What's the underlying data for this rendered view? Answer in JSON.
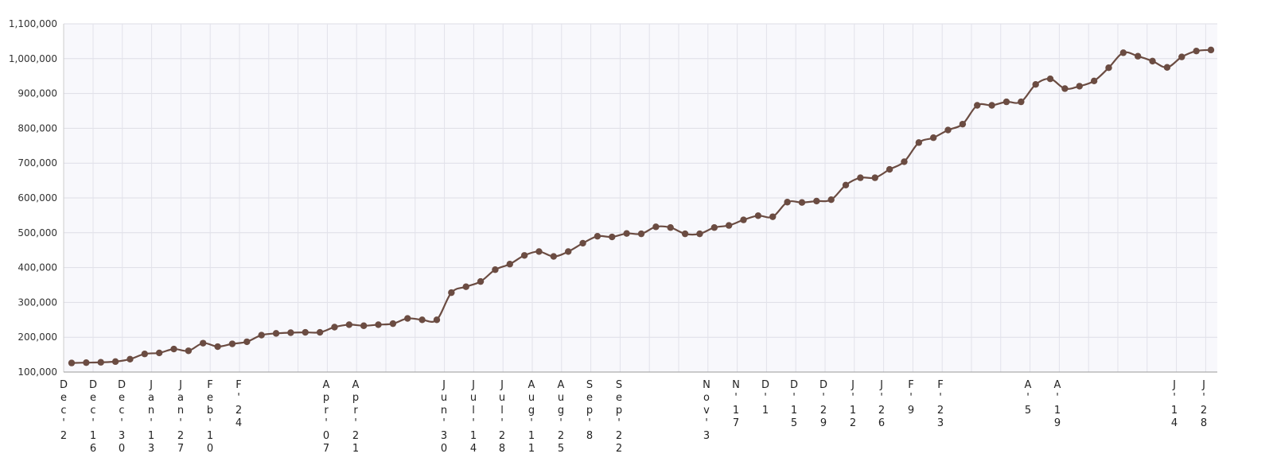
{
  "chart_data": {
    "type": "line",
    "ylim": [
      100000,
      1100000
    ],
    "y_ticks": [
      "100,000",
      "200,000",
      "300,000",
      "400,000",
      "500,000",
      "600,000",
      "700,000",
      "800,000",
      "900,000",
      "1,000,000",
      "1,100,000"
    ],
    "x_tick_labels": [
      "Dec'2",
      "Dec'16",
      "Dec'30",
      "Jan'13",
      "Jan'27",
      "Feb'10",
      "F'24",
      "Apr'07",
      "Apr'21",
      "Jun'30",
      "Jul'14",
      "Jul'28",
      "Aug'11",
      "Aug'25",
      "Sep'8",
      "Sep'22",
      "Nov'3",
      "N'17",
      "D'1",
      "D'15",
      "D'29",
      "J'12",
      "J'26",
      "F'9",
      "F'23",
      "A'5",
      "A'19",
      "J'14",
      "J'28"
    ],
    "grid": true,
    "legend": "none",
    "series": [
      {
        "color": "#6b4c42",
        "values": [
          126000,
          127000,
          128000,
          130000,
          137000,
          152000,
          155000,
          166000,
          161000,
          183000,
          173000,
          181000,
          187000,
          206000,
          211000,
          213000,
          214000,
          214000,
          229000,
          236000,
          233000,
          236000,
          239000,
          254000,
          250000,
          250000,
          328000,
          345000,
          360000,
          394000,
          410000,
          435000,
          446000,
          432000,
          446000,
          470000,
          490000,
          488000,
          498000,
          497000,
          517000,
          515000,
          497000,
          497000,
          515000,
          521000,
          537000,
          549000,
          546000,
          588000,
          587000,
          591000,
          595000,
          637000,
          658000,
          658000,
          682000,
          704000,
          759000,
          773000,
          795000,
          812000,
          866000,
          866000,
          876000,
          876000,
          926000,
          942000,
          914000,
          921000,
          936000,
          974000,
          1017000,
          1007000,
          993000,
          975000,
          1005000,
          1022000,
          1025000
        ]
      }
    ]
  }
}
